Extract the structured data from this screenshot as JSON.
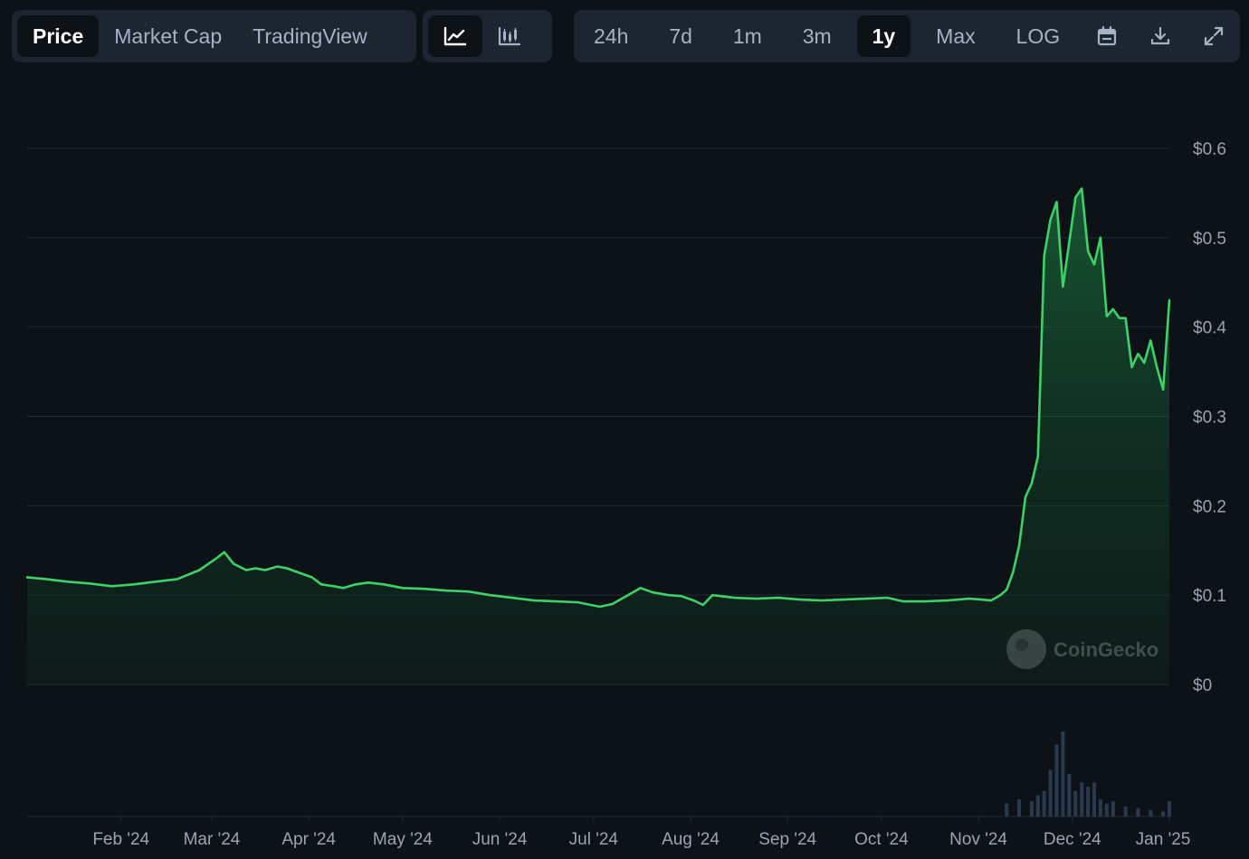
{
  "toolbar": {
    "data_tabs": [
      {
        "label": "Price",
        "active": true
      },
      {
        "label": "Market Cap",
        "active": false
      },
      {
        "label": "TradingView",
        "active": false
      }
    ],
    "chart_style_buttons": [
      {
        "icon": "line-chart-icon",
        "active": true
      },
      {
        "icon": "candlestick-chart-icon",
        "active": false
      }
    ],
    "ranges": [
      {
        "label": "24h",
        "active": false
      },
      {
        "label": "7d",
        "active": false
      },
      {
        "label": "1m",
        "active": false
      },
      {
        "label": "3m",
        "active": false
      },
      {
        "label": "1y",
        "active": true
      },
      {
        "label": "Max",
        "active": false
      },
      {
        "label": "LOG",
        "active": false
      }
    ],
    "action_icons": [
      "calendar-icon",
      "download-icon",
      "fullscreen-icon"
    ]
  },
  "watermark": "CoinGecko",
  "colors": {
    "background": "#0d1217",
    "line": "#3dd168",
    "volume": "#2a3a4e",
    "grid": "#232b35",
    "active_tab_bg": "#0d1217",
    "toolbar_bg": "#1c2530"
  },
  "chart_data": {
    "type": "area",
    "title": "",
    "xlabel": "",
    "ylabel": "",
    "y_ticks": [
      "$0",
      "$0.1",
      "$0.2",
      "$0.3",
      "$0.4",
      "$0.5",
      "$0.6"
    ],
    "x_ticks": [
      "Feb '24",
      "Mar '24",
      "Apr '24",
      "May '24",
      "Jun '24",
      "Jul '24",
      "Aug '24",
      "Sep '24",
      "Oct '24",
      "Nov '24",
      "Dec '24",
      "Jan '25"
    ],
    "ylim": [
      0,
      0.6
    ],
    "grid": true,
    "series": [
      {
        "type": "line",
        "x": [
          "2024-01-02",
          "2024-01-08",
          "2024-01-15",
          "2024-01-22",
          "2024-01-29",
          "2024-02-05",
          "2024-02-12",
          "2024-02-19",
          "2024-02-26",
          "2024-03-02",
          "2024-03-05",
          "2024-03-08",
          "2024-03-12",
          "2024-03-15",
          "2024-03-18",
          "2024-03-22",
          "2024-03-25",
          "2024-03-29",
          "2024-04-02",
          "2024-04-05",
          "2024-04-09",
          "2024-04-12",
          "2024-04-16",
          "2024-04-20",
          "2024-04-25",
          "2024-05-01",
          "2024-05-08",
          "2024-05-15",
          "2024-05-22",
          "2024-05-29",
          "2024-06-05",
          "2024-06-12",
          "2024-06-19",
          "2024-06-26",
          "2024-07-03",
          "2024-07-07",
          "2024-07-12",
          "2024-07-16",
          "2024-07-20",
          "2024-07-25",
          "2024-07-29",
          "2024-08-02",
          "2024-08-05",
          "2024-08-08",
          "2024-08-15",
          "2024-08-22",
          "2024-08-29",
          "2024-09-05",
          "2024-09-12",
          "2024-09-19",
          "2024-09-26",
          "2024-10-03",
          "2024-10-08",
          "2024-10-15",
          "2024-10-22",
          "2024-10-29",
          "2024-11-02",
          "2024-11-05",
          "2024-11-08",
          "2024-11-10",
          "2024-11-12",
          "2024-11-14",
          "2024-11-16",
          "2024-11-18",
          "2024-11-20",
          "2024-11-22",
          "2024-11-24",
          "2024-11-26",
          "2024-11-28",
          "2024-11-30",
          "2024-12-02",
          "2024-12-04",
          "2024-12-06",
          "2024-12-08",
          "2024-12-10",
          "2024-12-12",
          "2024-12-14",
          "2024-12-16",
          "2024-12-18",
          "2024-12-20",
          "2024-12-22",
          "2024-12-24",
          "2024-12-26",
          "2024-12-28",
          "2024-12-30",
          "2025-01-01"
        ],
        "y": [
          0.12,
          0.118,
          0.115,
          0.113,
          0.11,
          0.112,
          0.115,
          0.118,
          0.128,
          0.14,
          0.148,
          0.135,
          0.128,
          0.13,
          0.128,
          0.132,
          0.13,
          0.125,
          0.12,
          0.112,
          0.11,
          0.108,
          0.112,
          0.114,
          0.112,
          0.108,
          0.107,
          0.105,
          0.104,
          0.1,
          0.097,
          0.094,
          0.093,
          0.092,
          0.087,
          0.09,
          0.1,
          0.108,
          0.103,
          0.1,
          0.099,
          0.094,
          0.089,
          0.1,
          0.097,
          0.096,
          0.097,
          0.095,
          0.094,
          0.095,
          0.096,
          0.097,
          0.093,
          0.093,
          0.094,
          0.096,
          0.095,
          0.094,
          0.1,
          0.106,
          0.125,
          0.155,
          0.21,
          0.225,
          0.255,
          0.48,
          0.52,
          0.54,
          0.445,
          0.495,
          0.545,
          0.555,
          0.485,
          0.47,
          0.5,
          0.412,
          0.42,
          0.41,
          0.41,
          0.355,
          0.37,
          0.36,
          0.385,
          0.355,
          0.33,
          0.43
        ]
      },
      {
        "type": "volume",
        "x": [
          "2024-11-10",
          "2024-11-14",
          "2024-11-18",
          "2024-11-20",
          "2024-11-22",
          "2024-11-24",
          "2024-11-26",
          "2024-11-28",
          "2024-11-30",
          "2024-12-02",
          "2024-12-04",
          "2024-12-06",
          "2024-12-08",
          "2024-12-10",
          "2024-12-12",
          "2024-12-14",
          "2024-12-18",
          "2024-12-22",
          "2024-12-26",
          "2024-12-30",
          "2025-01-01"
        ],
        "y": [
          0.15,
          0.2,
          0.18,
          0.25,
          0.3,
          0.55,
          0.85,
          1.0,
          0.5,
          0.3,
          0.4,
          0.35,
          0.4,
          0.2,
          0.15,
          0.18,
          0.12,
          0.1,
          0.08,
          0.06,
          0.18
        ]
      }
    ]
  }
}
